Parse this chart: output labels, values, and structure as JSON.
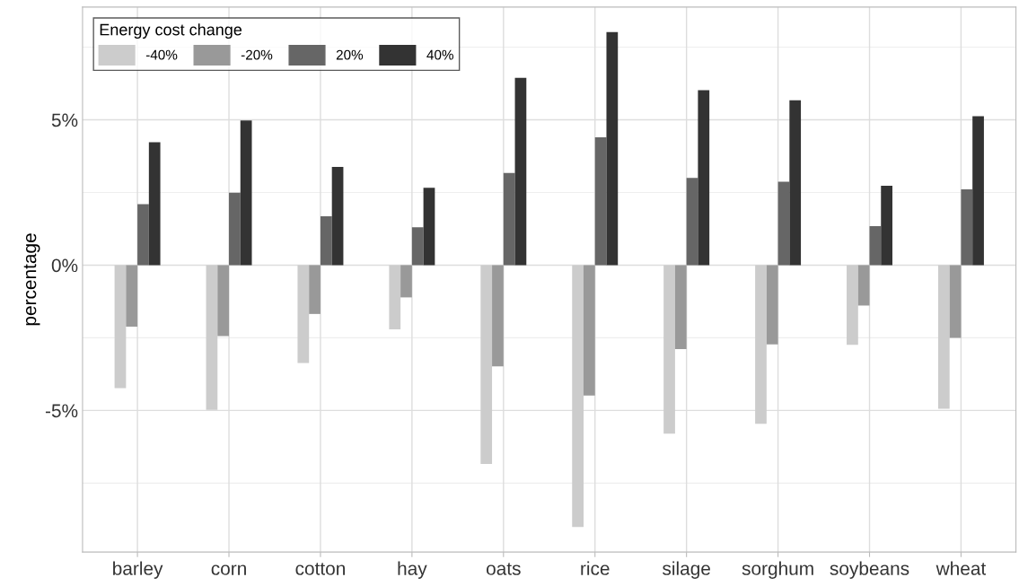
{
  "chart_data": {
    "type": "bar",
    "ylabel": "percentage",
    "legend_title": "Energy cost change",
    "legend": "top left",
    "grid": true,
    "categories": [
      "barley",
      "corn",
      "cotton",
      "hay",
      "oats",
      "rice",
      "silage",
      "sorghum",
      "soybeans",
      "wheat"
    ],
    "series": [
      {
        "name": "-40%",
        "color": "#cccccc",
        "values": [
          -4.23,
          -4.98,
          -3.37,
          -2.21,
          -6.84,
          -9.01,
          -5.8,
          -5.46,
          -2.74,
          -4.94
        ]
      },
      {
        "name": "-20%",
        "color": "#999999",
        "values": [
          -2.12,
          -2.44,
          -1.68,
          -1.11,
          -3.48,
          -4.49,
          -2.89,
          -2.73,
          -1.39,
          -2.5
        ]
      },
      {
        "name": "20%",
        "color": "#666666",
        "values": [
          2.1,
          2.49,
          1.68,
          1.3,
          3.17,
          4.4,
          3.0,
          2.87,
          1.34,
          2.61
        ]
      },
      {
        "name": "40%",
        "color": "#333333",
        "values": [
          4.23,
          4.98,
          3.38,
          2.66,
          6.44,
          8.02,
          6.02,
          5.67,
          2.73,
          5.12
        ]
      }
    ],
    "ylim": [
      -9.87,
      8.88
    ],
    "yticks": [
      {
        "value": -5,
        "label": "-5%"
      },
      {
        "value": 0,
        "label": "0%"
      },
      {
        "value": 5,
        "label": "5%"
      }
    ]
  }
}
